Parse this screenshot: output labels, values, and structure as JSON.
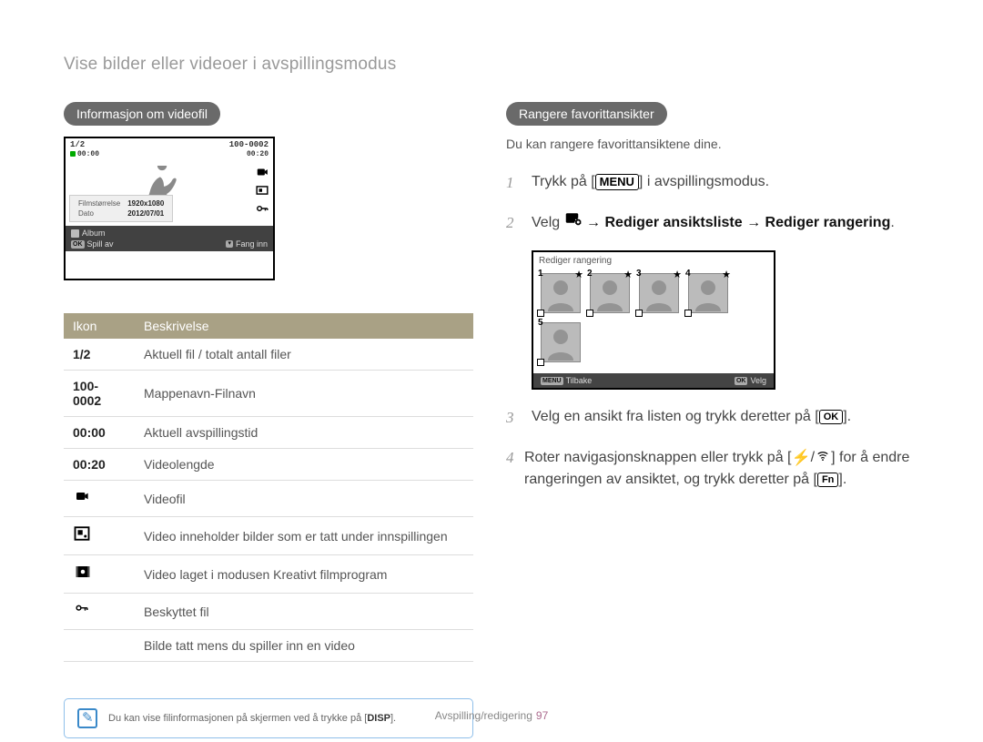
{
  "page_title": "Vise bilder eller videoer i avspillingsmodus",
  "footer": {
    "text": "Avspilling/redigering",
    "page": "97"
  },
  "tip": {
    "prefix": "Du kan vise filinformasjonen på skjermen ved å trykke på [",
    "key": "DISP",
    "suffix": "]."
  },
  "left": {
    "pill": "Informasjon om videofil",
    "screen": {
      "top_left": "1/2",
      "top_right": "100-0002",
      "time_left": "00:00",
      "time_right": "00:20",
      "info1_label": "Filmstørrelse",
      "info1_value": "1920x1080",
      "info2_label": "Dato",
      "info2_value": "2012/07/01",
      "album": "Album",
      "spillav": "Spill av",
      "fanginn": "Fang inn",
      "ok": "OK"
    },
    "table": {
      "head_icon": "Ikon",
      "head_desc": "Beskrivelse",
      "rows": [
        {
          "icon": "1/2",
          "type": "text",
          "desc": "Aktuell fil / totalt antall filer"
        },
        {
          "icon": "100-0002",
          "type": "text",
          "desc": "Mappenavn-Filnavn"
        },
        {
          "icon": "00:00",
          "type": "text",
          "desc": "Aktuell avspillingstid"
        },
        {
          "icon": "00:20",
          "type": "text",
          "desc": "Videolengde"
        },
        {
          "icon": "camera",
          "type": "icon",
          "desc": "Videofil"
        },
        {
          "icon": "capture",
          "type": "icon",
          "desc": "Video inneholder bilder som er tatt under innspillingen"
        },
        {
          "icon": "creative",
          "type": "icon",
          "desc": "Video laget i modusen Kreativt filmprogram"
        },
        {
          "icon": "key",
          "type": "icon",
          "desc": "Beskyttet fil"
        },
        {
          "icon": "",
          "type": "blank",
          "desc": "Bilde tatt mens du spiller inn en video"
        }
      ]
    }
  },
  "right": {
    "pill": "Rangere favorittansikter",
    "subtext": "Du kan rangere favorittansiktene dine.",
    "step1_prefix": "Trykk på [",
    "step1_key": "MENU",
    "step1_suffix": "] i avspillingsmodus.",
    "step2_prefix": "Velg ",
    "step2_bold": " → Rediger ansiktsliste → Rediger rangering",
    "step2_suffix": ".",
    "step3_prefix": "Velg en ansikt fra listen og trykk deretter på [",
    "step3_key": "OK",
    "step3_suffix": "].",
    "step4_prefix": "Roter navigasjonsknappen eller trykk på [",
    "step4_mid": "] for å endre rangeringen av ansiktet, og trykk deretter på [",
    "step4_key": "Fn",
    "step4_suffix": "].",
    "face_screen": {
      "title": "Rediger rangering",
      "tilbake": "Tilbake",
      "velg": "Velg",
      "menu": "MENU",
      "ok": "OK"
    }
  }
}
